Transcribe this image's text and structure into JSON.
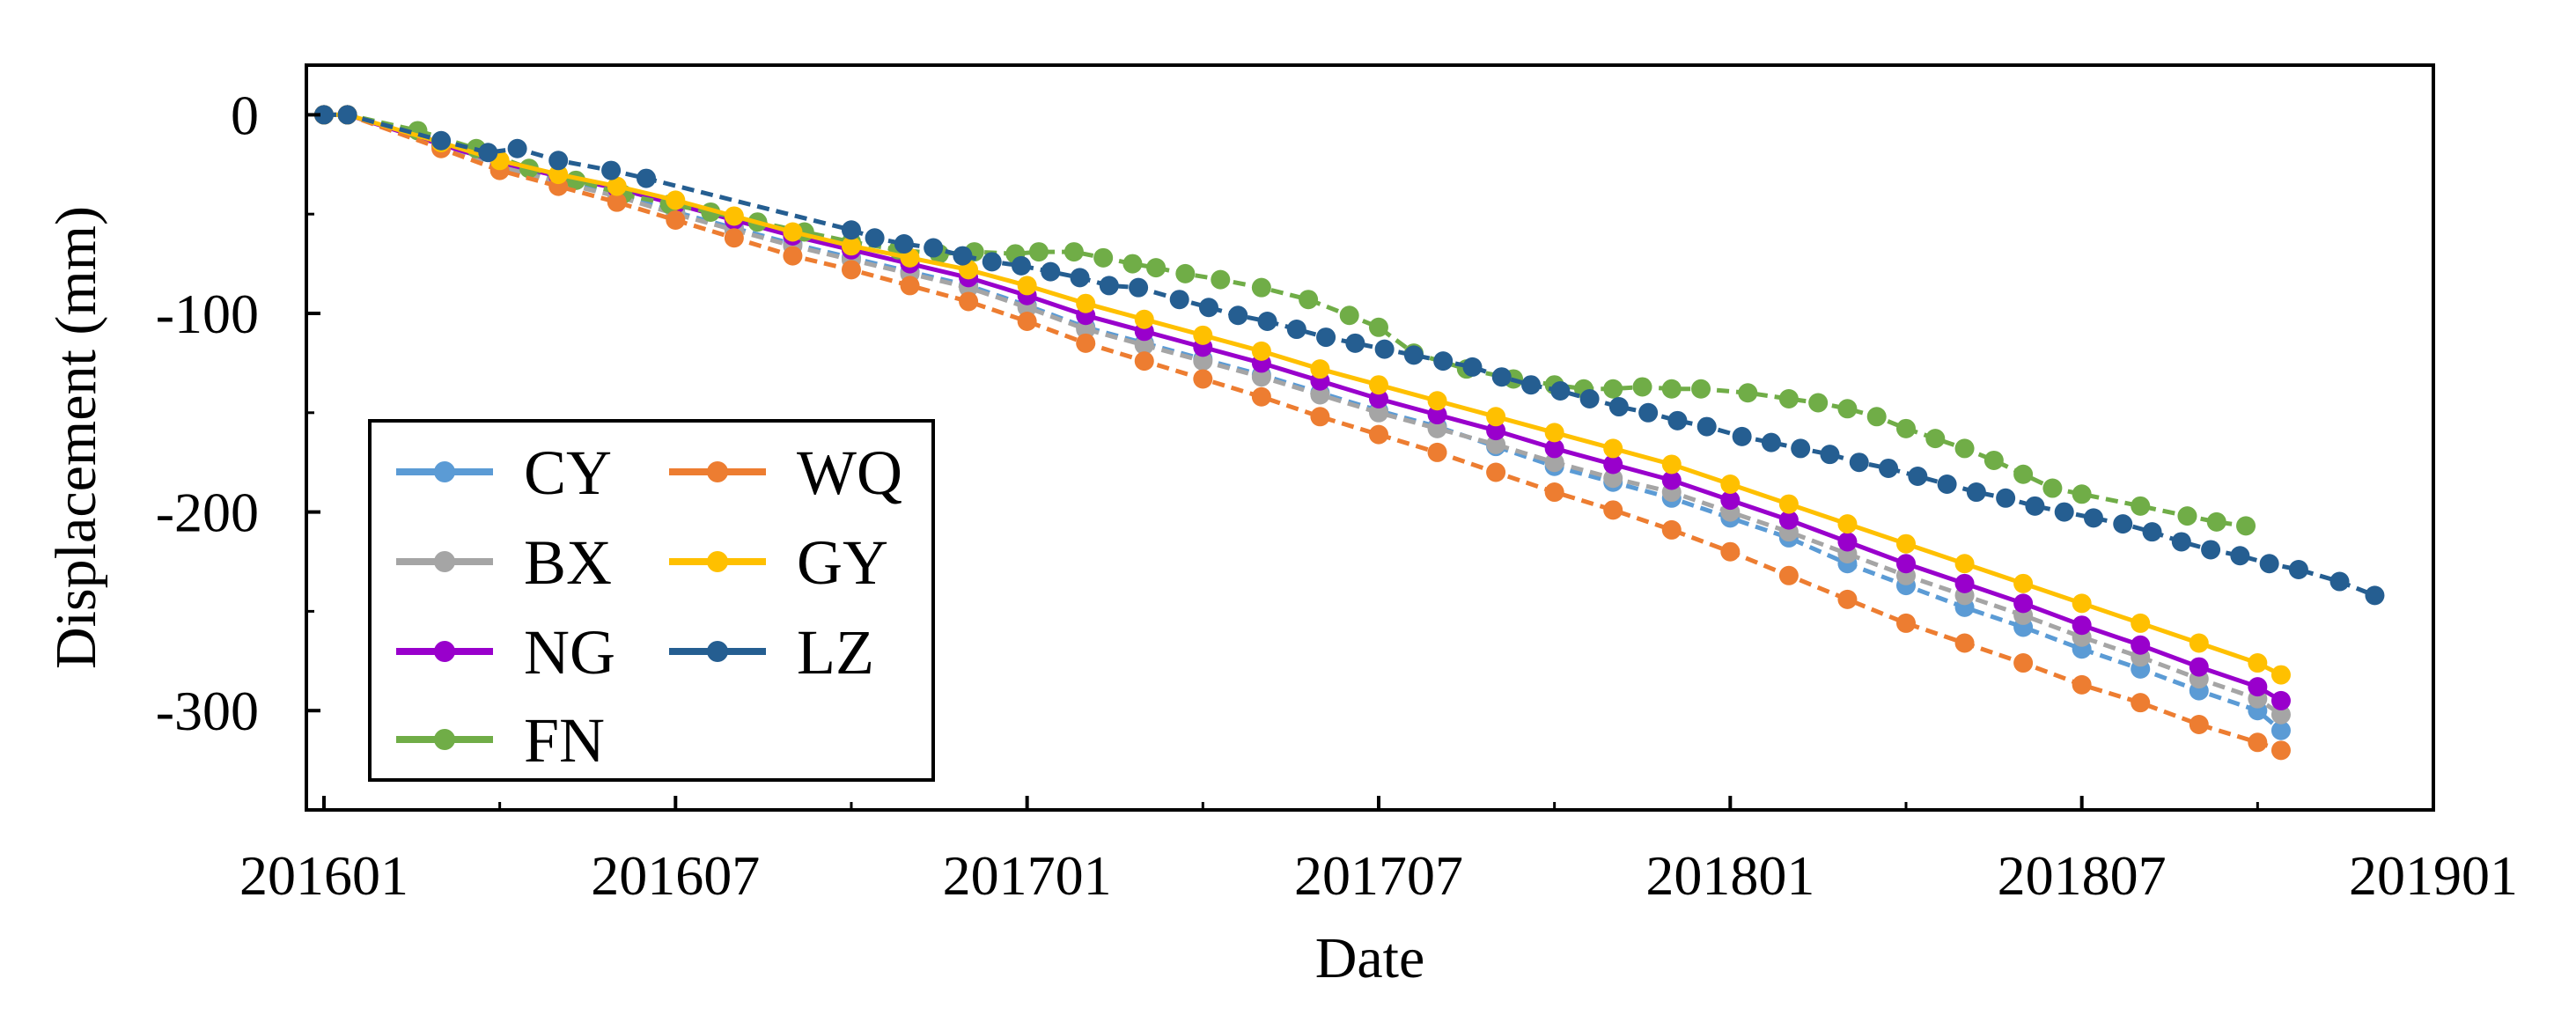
{
  "chart_data": {
    "type": "line",
    "title": "",
    "xlabel": "Date",
    "ylabel": "Displacement (mm)",
    "x_tick_labels": [
      "201601",
      "201607",
      "201701",
      "201707",
      "201801",
      "201807",
      "201901"
    ],
    "x_ticks_months": [
      0,
      6,
      12,
      18,
      24,
      30,
      36
    ],
    "xlim_months": [
      -0.3,
      36
    ],
    "y_tick_labels": [
      "0",
      "-100",
      "-200",
      "-300"
    ],
    "y_ticks": [
      0,
      -100,
      -200,
      -300
    ],
    "ylim": [
      -350,
      25
    ],
    "x_unit_note": "x values are months since 2016-01",
    "legend": {
      "placement": "bottom-left",
      "columns": 2
    },
    "series": [
      {
        "name": "CY",
        "color": "#5b9bd5",
        "style": "dashed",
        "x": [
          0,
          0.4,
          2,
          3,
          4,
          5,
          6,
          7,
          8,
          9,
          10,
          11,
          12,
          13,
          14,
          15,
          16,
          17,
          18,
          19,
          20,
          21,
          22,
          23,
          24,
          25,
          26,
          27,
          28,
          29,
          30,
          31,
          32,
          33,
          33.4
        ],
        "y": [
          0,
          0,
          -15,
          -25,
          -33,
          -40,
          -49,
          -57,
          -65,
          -72,
          -79,
          -86,
          -96,
          -107,
          -115,
          -123,
          -131,
          -140,
          -149,
          -157,
          -167,
          -177,
          -185,
          -193,
          -203,
          -213,
          -226,
          -237,
          -248,
          -258,
          -269,
          -279,
          -290,
          -300,
          -310
        ]
      },
      {
        "name": "BX",
        "color": "#a5a5a5",
        "style": "dashed",
        "x": [
          0,
          0.4,
          2,
          3,
          4,
          5,
          6,
          7,
          8,
          9,
          10,
          11,
          12,
          13,
          14,
          15,
          16,
          17,
          18,
          19,
          20,
          21,
          22,
          23,
          24,
          25,
          26,
          27,
          28,
          29,
          30,
          31,
          32,
          33,
          33.4
        ],
        "y": [
          0,
          0,
          -16,
          -26,
          -34,
          -41,
          -50,
          -58,
          -66,
          -73,
          -80,
          -87,
          -97,
          -108,
          -116,
          -124,
          -132,
          -141,
          -150,
          -158,
          -166,
          -175,
          -183,
          -190,
          -200,
          -210,
          -221,
          -232,
          -242,
          -252,
          -263,
          -273,
          -284,
          -294,
          -302
        ]
      },
      {
        "name": "NG",
        "color": "#9900cc",
        "style": "solid",
        "x": [
          0,
          0.4,
          2,
          3,
          4,
          5,
          6,
          7,
          8,
          9,
          10,
          11,
          12,
          13,
          14,
          15,
          16,
          17,
          18,
          19,
          20,
          21,
          22,
          23,
          24,
          25,
          26,
          27,
          28,
          29,
          30,
          31,
          32,
          33,
          33.4
        ],
        "y": [
          0,
          0,
          -15,
          -24,
          -31,
          -37,
          -45,
          -53,
          -61,
          -68,
          -75,
          -82,
          -91,
          -101,
          -109,
          -117,
          -125,
          -134,
          -143,
          -151,
          -159,
          -168,
          -176,
          -184,
          -194,
          -204,
          -215,
          -226,
          -236,
          -246,
          -257,
          -267,
          -278,
          -288,
          -295
        ]
      },
      {
        "name": "FN",
        "color": "#70ad47",
        "style": "dashed",
        "x": [
          0,
          0.4,
          1.6,
          2.6,
          3.5,
          4.3,
          5.1,
          5.9,
          6.6,
          7.4,
          8.2,
          9.0,
          9.8,
          10.5,
          11.1,
          11.8,
          12.2,
          12.8,
          13.3,
          13.8,
          14.2,
          14.7,
          15.3,
          16.0,
          16.8,
          17.5,
          18.0,
          18.6,
          19.5,
          20.3,
          21.0,
          21.5,
          22.0,
          22.5,
          23.0,
          23.5,
          24.3,
          25.0,
          25.5,
          26.0,
          26.5,
          27.0,
          27.5,
          28.0,
          28.5,
          29.0,
          29.5,
          30.0,
          31.0,
          31.8,
          32.3,
          32.8
        ],
        "y": [
          0,
          0,
          -8,
          -17,
          -27,
          -33,
          -40,
          -45,
          -49,
          -54,
          -59,
          -64,
          -68,
          -70,
          -69,
          -70,
          -69,
          -69,
          -72,
          -75,
          -77,
          -80,
          -83,
          -87,
          -93,
          -101,
          -107,
          -120,
          -128,
          -133,
          -136,
          -138,
          -138,
          -137,
          -138,
          -138,
          -140,
          -143,
          -145,
          -148,
          -152,
          -158,
          -163,
          -168,
          -174,
          -181,
          -188,
          -191,
          -197,
          -202,
          -205,
          -207
        ]
      },
      {
        "name": "WQ",
        "color": "#ed7d31",
        "style": "dashed",
        "x": [
          0,
          0.4,
          2,
          3,
          4,
          5,
          6,
          7,
          8,
          9,
          10,
          11,
          12,
          13,
          14,
          15,
          16,
          17,
          18,
          19,
          20,
          21,
          22,
          23,
          24,
          25,
          26,
          27,
          28,
          29,
          30,
          31,
          32,
          33,
          33.4
        ],
        "y": [
          0,
          0,
          -17,
          -28,
          -36,
          -44,
          -53,
          -62,
          -71,
          -78,
          -86,
          -94,
          -104,
          -115,
          -124,
          -133,
          -142,
          -152,
          -161,
          -170,
          -180,
          -190,
          -199,
          -209,
          -220,
          -232,
          -244,
          -256,
          -266,
          -276,
          -287,
          -296,
          -307,
          -316,
          -320
        ]
      },
      {
        "name": "GY",
        "color": "#ffc000",
        "style": "solid",
        "x": [
          0,
          0.4,
          2,
          3,
          4,
          5,
          6,
          7,
          8,
          9,
          10,
          11,
          12,
          13,
          14,
          15,
          16,
          17,
          18,
          19,
          20,
          21,
          22,
          23,
          24,
          25,
          26,
          27,
          28,
          29,
          30,
          31,
          32,
          33,
          33.4
        ],
        "y": [
          0,
          0,
          -14,
          -23,
          -30,
          -36,
          -43,
          -51,
          -59,
          -66,
          -72,
          -78,
          -86,
          -95,
          -103,
          -111,
          -119,
          -128,
          -136,
          -144,
          -152,
          -160,
          -168,
          -176,
          -186,
          -196,
          -206,
          -216,
          -226,
          -236,
          -246,
          -256,
          -266,
          -276,
          -282
        ]
      },
      {
        "name": "LZ",
        "color": "#255e91",
        "style": "dashed",
        "x": [
          0,
          0.4,
          2,
          2.8,
          3.3,
          4.0,
          4.9,
          5.5,
          9.0,
          9.4,
          9.9,
          10.4,
          10.9,
          11.4,
          11.9,
          12.4,
          12.9,
          13.4,
          13.9,
          14.6,
          15.1,
          15.6,
          16.1,
          16.6,
          17.1,
          17.6,
          18.1,
          18.6,
          19.1,
          19.6,
          20.1,
          20.6,
          21.1,
          21.6,
          22.1,
          22.6,
          23.1,
          23.6,
          24.2,
          24.7,
          25.2,
          25.7,
          26.2,
          26.7,
          27.2,
          27.7,
          28.2,
          28.7,
          29.2,
          29.7,
          30.2,
          30.7,
          31.2,
          31.7,
          32.2,
          32.7,
          33.2,
          33.7,
          34.4,
          35.0
        ],
        "y": [
          0,
          0,
          -13,
          -19,
          -17,
          -23,
          -28,
          -32,
          -58,
          -62,
          -65,
          -67,
          -71,
          -74,
          -76,
          -79,
          -82,
          -86,
          -87,
          -93,
          -97,
          -101,
          -104,
          -108,
          -112,
          -115,
          -118,
          -121,
          -124,
          -127,
          -132,
          -136,
          -139,
          -143,
          -147,
          -150,
          -154,
          -157,
          -162,
          -165,
          -168,
          -171,
          -175,
          -178,
          -182,
          -186,
          -190,
          -193,
          -197,
          -200,
          -203,
          -206,
          -210,
          -215,
          -219,
          -222,
          -226,
          -229,
          -235,
          -242
        ]
      }
    ]
  }
}
